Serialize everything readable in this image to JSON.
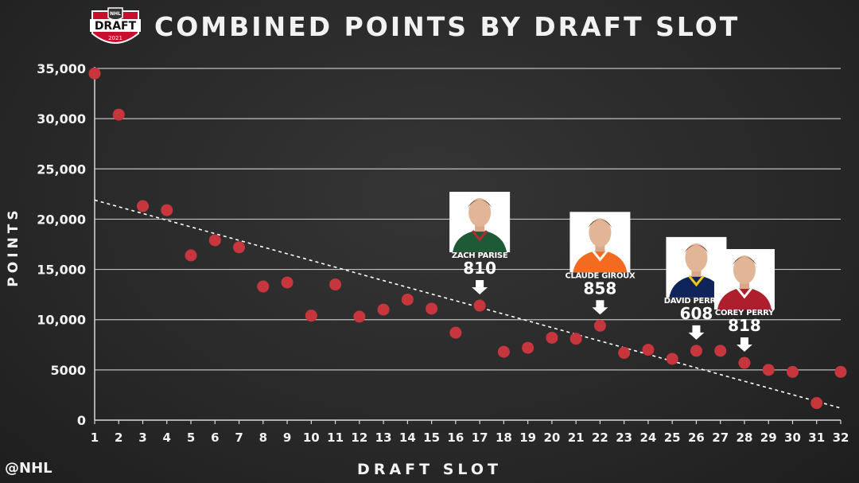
{
  "header": {
    "title": "COMBINED POINTS BY DRAFT SLOT",
    "logo_text": "DRAFT",
    "logo_year": "2021"
  },
  "footer": {
    "handle": "@NHL"
  },
  "colors": {
    "point": "#c8363d",
    "grid": "#d9d9d9",
    "text": "#f2f2f2",
    "background": "#2b2b2b"
  },
  "chart_data": {
    "type": "scatter",
    "xlabel": "DRAFT SLOT",
    "ylabel": "POINTS",
    "ylim": [
      0,
      35000
    ],
    "yticks": [
      {
        "value": 0,
        "label": "0"
      },
      {
        "value": 5000,
        "label": "5000"
      },
      {
        "value": 10000,
        "label": "10,000"
      },
      {
        "value": 15000,
        "label": "15,000"
      },
      {
        "value": 20000,
        "label": "20,000"
      },
      {
        "value": 25000,
        "label": "25,000"
      },
      {
        "value": 30000,
        "label": "30,000"
      },
      {
        "value": 35000,
        "label": "35,000"
      }
    ],
    "xticks": [
      "1",
      "2",
      "3",
      "4",
      "5",
      "6",
      "7",
      "8",
      "9",
      "10",
      "11",
      "12",
      "13",
      "14",
      "15",
      "16",
      "17",
      "18",
      "19",
      "20",
      "21",
      "22",
      "23",
      "24",
      "25",
      "26",
      "27",
      "28",
      "29",
      "30",
      "31",
      "32"
    ],
    "grid": "horizontal",
    "points": [
      {
        "slot": 1,
        "points": 34500
      },
      {
        "slot": 2,
        "points": 30400
      },
      {
        "slot": 3,
        "points": 21300
      },
      {
        "slot": 4,
        "points": 20900
      },
      {
        "slot": 5,
        "points": 16400
      },
      {
        "slot": 6,
        "points": 17900
      },
      {
        "slot": 7,
        "points": 17200
      },
      {
        "slot": 8,
        "points": 13300
      },
      {
        "slot": 9,
        "points": 13700
      },
      {
        "slot": 10,
        "points": 10400
      },
      {
        "slot": 11,
        "points": 13500
      },
      {
        "slot": 12,
        "points": 10300
      },
      {
        "slot": 13,
        "points": 11000
      },
      {
        "slot": 14,
        "points": 12000
      },
      {
        "slot": 15,
        "points": 11100
      },
      {
        "slot": 16,
        "points": 8700
      },
      {
        "slot": 17,
        "points": 11400
      },
      {
        "slot": 18,
        "points": 6800
      },
      {
        "slot": 19,
        "points": 7200
      },
      {
        "slot": 20,
        "points": 8200
      },
      {
        "slot": 21,
        "points": 8100
      },
      {
        "slot": 22,
        "points": 9400
      },
      {
        "slot": 23,
        "points": 6700
      },
      {
        "slot": 24,
        "points": 7000
      },
      {
        "slot": 25,
        "points": 6100
      },
      {
        "slot": 26,
        "points": 6900
      },
      {
        "slot": 27,
        "points": 6900
      },
      {
        "slot": 28,
        "points": 5700
      },
      {
        "slot": 29,
        "points": 5000
      },
      {
        "slot": 30,
        "points": 4800
      },
      {
        "slot": 31,
        "points": 1700
      },
      {
        "slot": 32,
        "points": 4800
      }
    ],
    "trendline": {
      "start": {
        "slot": 1,
        "points": 21900
      },
      "end": {
        "slot": 32,
        "points": 1200
      }
    },
    "annotations": [
      {
        "name": "ZACH PARISE",
        "value": "810",
        "slot": 17,
        "jersey": "#1f5a36",
        "trim": "#b22b31"
      },
      {
        "name": "CLAUDE GIROUX",
        "value": "858",
        "slot": 22,
        "jersey": "#f26b21",
        "trim": "#ffffff"
      },
      {
        "name": "DAVID PERRON",
        "value": "608",
        "slot": 26,
        "jersey": "#10245c",
        "trim": "#f5c518"
      },
      {
        "name": "COREY PERRY",
        "value": "818",
        "slot": 28,
        "jersey": "#af1e2d",
        "trim": "#ffffff"
      }
    ]
  }
}
